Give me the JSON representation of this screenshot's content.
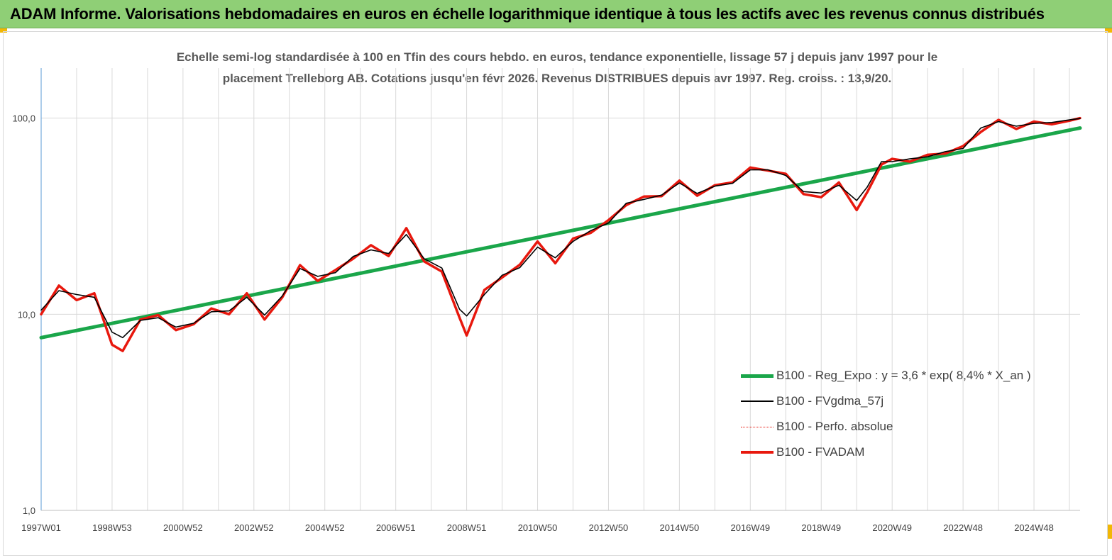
{
  "banner": {
    "title": "ADAM Informe. Valorisations hebdomadaires en euros en échelle logarithmique identique à tous les actifs avec les revenus connus distribués"
  },
  "subtitle": {
    "line1": "Echelle semi-log standardisée à 100 en Tfin des cours hebdo. en euros, tendance exponentielle, lissage 57 j depuis janv 1997 pour le",
    "line2": "placement Trelleborg AB. Cotations jusqu'en févr 2026. Revenus DISTRIBUES depuis avr 1997. Reg. croiss. : 13,9/20."
  },
  "colors": {
    "banner": "#8fcf76",
    "trend": "#1aa64a",
    "smoothed": "#000000",
    "fvadam": "#e8180e",
    "perfo": "#e8180e",
    "grid": "#d9d9d9",
    "axis": "#5b9bd5"
  },
  "chart_data": {
    "type": "line",
    "y_scale": "log",
    "ylim": [
      1,
      180
    ],
    "y_ticks": [
      1,
      10,
      100
    ],
    "y_tick_labels": [
      "1,0",
      "10,0",
      "100,0"
    ],
    "x_tick_labels": [
      "1997W01",
      "1998W53",
      "2000W52",
      "2002W52",
      "2004W52",
      "2006W51",
      "2008W51",
      "2010W50",
      "2012W50",
      "2014W50",
      "2016W49",
      "2018W49",
      "2020W49",
      "2022W48",
      "2024W48"
    ],
    "x_tick_years": [
      1997.0,
      1999.0,
      2001.0,
      2003.0,
      2005.0,
      2007.0,
      2009.0,
      2011.0,
      2013.0,
      2015.0,
      2017.0,
      2019.0,
      2021.0,
      2023.0,
      2025.0
    ],
    "xlim": [
      1997.0,
      2026.3
    ],
    "grid": true,
    "legend_position": "bottom-right",
    "series": [
      {
        "name": "B100 - Reg_Expo : y = 3,6 * exp( 8,4% *  X_an )",
        "style": "trend",
        "x": [
          1997.0,
          2026.3
        ],
        "y": [
          7.6,
          89.0
        ]
      },
      {
        "name": "B100 - FVgdma_57j",
        "style": "smoothed",
        "x": [
          1997.0,
          1997.5,
          1998.0,
          1998.5,
          1999.0,
          1999.3,
          1999.8,
          2000.3,
          2000.8,
          2001.3,
          2001.8,
          2002.3,
          2002.8,
          2003.3,
          2003.8,
          2004.3,
          2004.8,
          2005.3,
          2005.8,
          2006.3,
          2006.8,
          2007.3,
          2007.8,
          2008.3,
          2008.8,
          2009.0,
          2009.5,
          2010.0,
          2010.5,
          2011.0,
          2011.5,
          2012.0,
          2012.5,
          2013.0,
          2013.5,
          2014.0,
          2014.5,
          2015.0,
          2015.5,
          2016.0,
          2016.5,
          2017.0,
          2017.5,
          2018.0,
          2018.5,
          2019.0,
          2019.5,
          2020.0,
          2020.3,
          2020.7,
          2021.0,
          2021.5,
          2022.0,
          2022.5,
          2023.0,
          2023.5,
          2024.0,
          2024.5,
          2025.0,
          2025.5,
          2026.0,
          2026.3
        ],
        "y": [
          10.5,
          13.2,
          12.6,
          12.2,
          8.1,
          7.6,
          9.3,
          9.6,
          8.6,
          9.0,
          10.3,
          10.4,
          12.2,
          9.9,
          12.4,
          17.1,
          15.6,
          16.3,
          19.7,
          21.3,
          20.4,
          25.5,
          19.2,
          17.2,
          10.6,
          9.8,
          12.6,
          15.8,
          17.3,
          22.0,
          19.4,
          23.5,
          26.7,
          29.2,
          36.8,
          38.5,
          40.5,
          46.7,
          41.3,
          45.0,
          46.5,
          54.5,
          54.5,
          51.0,
          42.2,
          41.5,
          45.5,
          38.0,
          44.6,
          60.0,
          60.0,
          62.0,
          63.5,
          67.5,
          70.0,
          89.0,
          96.0,
          91.0,
          94.0,
          95.0,
          98.0,
          99.5
        ]
      },
      {
        "name": "B100 - Perfo. absolue",
        "style": "perfo",
        "x": [
          1997.0,
          1997.5,
          1998.0,
          1998.5,
          1999.0,
          1999.3,
          1999.8,
          2000.3,
          2000.8,
          2001.3,
          2001.8,
          2002.3,
          2002.8,
          2003.3,
          2003.8,
          2004.3,
          2004.8,
          2005.3,
          2005.8,
          2006.3,
          2006.8,
          2007.3,
          2007.8,
          2008.3,
          2008.8,
          2009.0,
          2009.5,
          2010.0,
          2010.5,
          2011.0,
          2011.5,
          2012.0,
          2012.5,
          2013.0,
          2013.5,
          2014.0,
          2014.5,
          2015.0,
          2015.5,
          2016.0,
          2016.5,
          2017.0,
          2017.5,
          2018.0,
          2018.5,
          2019.0,
          2019.5,
          2020.0,
          2020.3,
          2020.7,
          2021.0,
          2021.5,
          2022.0,
          2022.5,
          2023.0,
          2023.5,
          2024.0,
          2024.5,
          2025.0,
          2025.5,
          2026.0,
          2026.3
        ],
        "y": [
          10.0,
          14.0,
          11.8,
          12.8,
          7.0,
          6.5,
          9.4,
          9.9,
          8.3,
          8.9,
          10.7,
          10.0,
          12.8,
          9.4,
          12.2,
          17.8,
          14.8,
          16.8,
          19.2,
          22.5,
          19.8,
          27.5,
          18.6,
          16.5,
          9.6,
          7.8,
          13.3,
          15.4,
          17.9,
          23.5,
          18.2,
          24.3,
          26.0,
          30.2,
          36.0,
          39.8,
          40.0,
          48.0,
          40.2,
          45.5,
          47.0,
          56.0,
          54.0,
          52.0,
          41.0,
          39.5,
          47.0,
          34.0,
          42.0,
          58.0,
          62.0,
          60.0,
          65.0,
          66.0,
          72.0,
          85.0,
          98.0,
          88.0,
          96.0,
          93.0,
          97.0,
          100.0
        ]
      },
      {
        "name": "B100 - FVADAM",
        "style": "fvadam",
        "x": [
          1997.0,
          1997.5,
          1998.0,
          1998.5,
          1999.0,
          1999.3,
          1999.8,
          2000.3,
          2000.8,
          2001.3,
          2001.8,
          2002.3,
          2002.8,
          2003.3,
          2003.8,
          2004.3,
          2004.8,
          2005.3,
          2005.8,
          2006.3,
          2006.8,
          2007.3,
          2007.8,
          2008.3,
          2008.8,
          2009.0,
          2009.5,
          2010.0,
          2010.5,
          2011.0,
          2011.5,
          2012.0,
          2012.5,
          2013.0,
          2013.5,
          2014.0,
          2014.5,
          2015.0,
          2015.5,
          2016.0,
          2016.5,
          2017.0,
          2017.5,
          2018.0,
          2018.5,
          2019.0,
          2019.5,
          2020.0,
          2020.3,
          2020.7,
          2021.0,
          2021.5,
          2022.0,
          2022.5,
          2023.0,
          2023.5,
          2024.0,
          2024.5,
          2025.0,
          2025.5,
          2026.0,
          2026.3
        ],
        "y": [
          10.0,
          14.0,
          11.8,
          12.8,
          7.0,
          6.5,
          9.4,
          9.9,
          8.3,
          8.9,
          10.7,
          10.0,
          12.8,
          9.4,
          12.2,
          17.8,
          14.8,
          16.8,
          19.2,
          22.5,
          19.8,
          27.5,
          18.6,
          16.5,
          9.6,
          7.8,
          13.3,
          15.4,
          17.9,
          23.5,
          18.2,
          24.3,
          26.0,
          30.2,
          36.0,
          39.8,
          40.0,
          48.0,
          40.2,
          45.5,
          47.0,
          56.0,
          54.0,
          52.0,
          41.0,
          39.5,
          47.0,
          34.0,
          42.0,
          58.0,
          62.0,
          60.0,
          65.0,
          66.0,
          72.0,
          85.0,
          98.0,
          88.0,
          96.0,
          93.0,
          97.0,
          100.0
        ]
      }
    ]
  }
}
